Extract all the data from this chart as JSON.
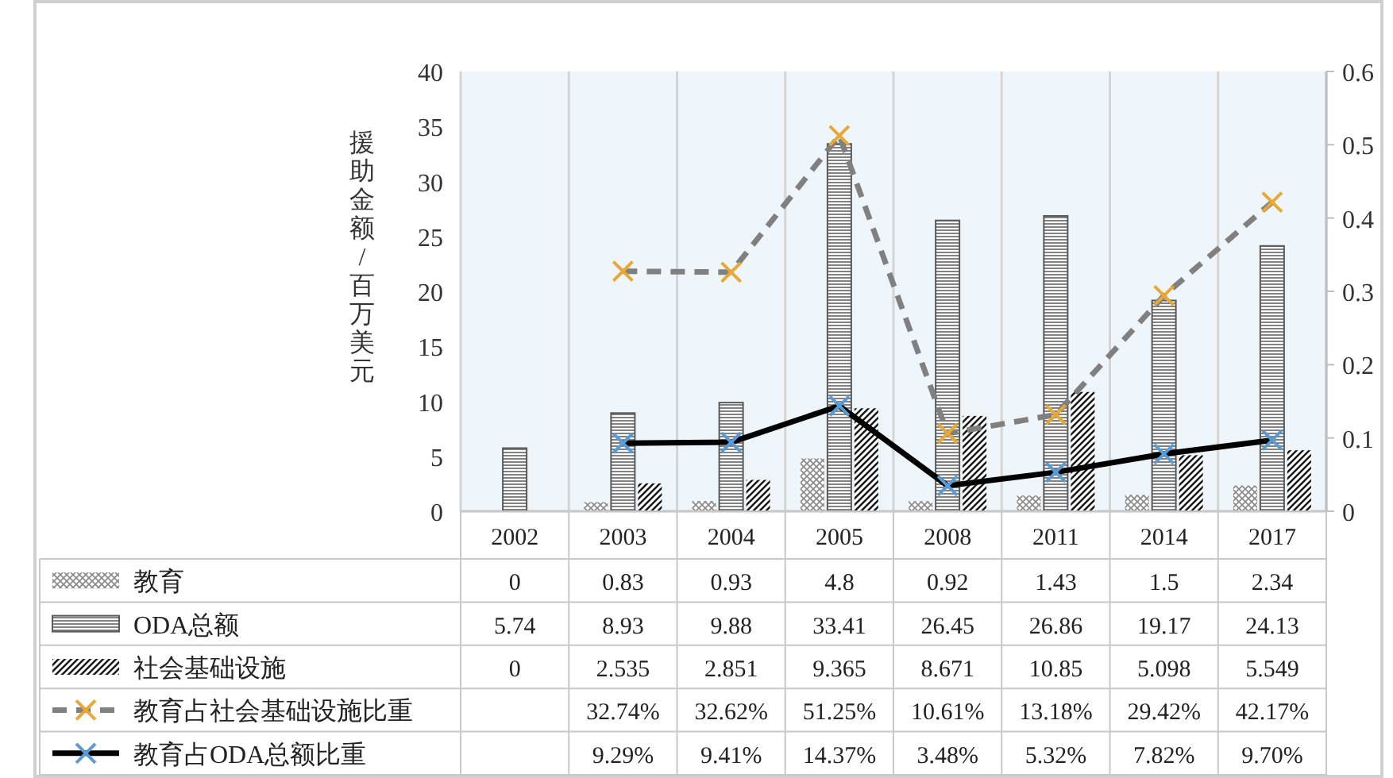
{
  "chart_data": {
    "type": "bar",
    "ylabel": "援助金额/百万美元",
    "categories": [
      "2002",
      "2003",
      "2004",
      "2005",
      "2008",
      "2011",
      "2014",
      "2017"
    ],
    "ylim": [
      0,
      40
    ],
    "yticks": [
      0,
      5,
      10,
      15,
      20,
      25,
      30,
      35,
      40
    ],
    "y2lim": [
      0,
      0.6
    ],
    "y2ticks": [
      0,
      0.1,
      0.2,
      0.3,
      0.4,
      0.5,
      0.6
    ],
    "grid": "x",
    "legend": "bottom",
    "series": [
      {
        "name": "教育",
        "color": "#8c8c8c",
        "values": [
          0,
          0.83,
          0.93,
          4.8,
          0.92,
          1.43,
          1.5,
          2.34
        ],
        "value_labels": [
          "0",
          "0.83",
          "0.93",
          "4.8",
          "0.92",
          "1.43",
          "1.5",
          "2.34"
        ]
      },
      {
        "name": "ODA总额",
        "color": "#595959",
        "values": [
          5.74,
          8.93,
          9.88,
          33.41,
          26.45,
          26.86,
          19.17,
          24.13
        ],
        "value_labels": [
          "5.74",
          "8.93",
          "9.88",
          "33.41",
          "26.45",
          "26.86",
          "19.17",
          "24.13"
        ]
      },
      {
        "name": "社会基础设施",
        "color": "#1a1a1a",
        "values": [
          0,
          2.535,
          2.851,
          9.365,
          8.671,
          10.85,
          5.098,
          5.549
        ],
        "value_labels": [
          "0",
          "2.535",
          "2.851",
          "9.365",
          "8.671",
          "10.85",
          "5.098",
          "5.549"
        ]
      },
      {
        "name": "教育占社会基础设施比重",
        "type": "line",
        "axis": "y2",
        "color": "#808080",
        "line_style": "dashed",
        "marker": "cross",
        "values": [
          null,
          0.3274,
          0.3262,
          0.5125,
          0.1061,
          0.1318,
          0.2942,
          0.4217
        ],
        "value_labels": [
          null,
          "32.74%",
          "32.62%",
          "51.25%",
          "10.61%",
          "13.18%",
          "29.42%",
          "42.17%"
        ]
      },
      {
        "name": "教育占ODA总额比重",
        "type": "line",
        "axis": "y2",
        "color": "#000000",
        "line_style": "solid",
        "marker": "cross",
        "values": [
          null,
          0.0929,
          0.0941,
          0.1437,
          0.0348,
          0.0532,
          0.0782,
          0.097
        ],
        "value_labels": [
          null,
          "9.29%",
          "9.41%",
          "14.37%",
          "3.48%",
          "5.32%",
          "7.82%",
          "9.70%"
        ]
      }
    ]
  }
}
